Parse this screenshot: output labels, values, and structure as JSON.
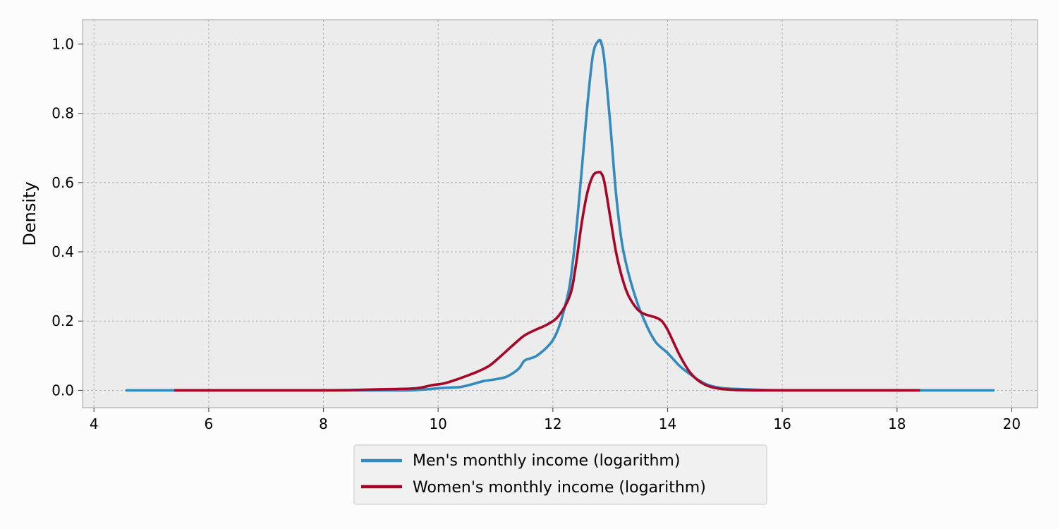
{
  "chart_data": {
    "type": "line",
    "title": "",
    "xlabel": "",
    "ylabel": "Density",
    "xlim": [
      3.8,
      20.45
    ],
    "ylim": [
      -0.05,
      1.07
    ],
    "xticks": [
      4,
      6,
      8,
      10,
      12,
      14,
      16,
      18,
      20
    ],
    "yticks": [
      0.0,
      0.2,
      0.4,
      0.6,
      0.8,
      1.0
    ],
    "grid": true,
    "legend_position": "bottom-center, outside plot",
    "series": [
      {
        "name": "Men's monthly income (logarithm)",
        "color": "#348abd",
        "x": [
          4.55,
          6.0,
          7.0,
          8.0,
          8.5,
          9.0,
          9.5,
          9.8,
          10.0,
          10.2,
          10.4,
          10.6,
          10.8,
          11.0,
          11.2,
          11.4,
          11.5,
          11.6,
          11.7,
          11.8,
          11.9,
          12.0,
          12.1,
          12.2,
          12.3,
          12.4,
          12.5,
          12.6,
          12.7,
          12.8,
          12.85,
          12.9,
          13.0,
          13.1,
          13.2,
          13.3,
          13.4,
          13.5,
          13.6,
          13.7,
          13.8,
          13.9,
          14.0,
          14.1,
          14.2,
          14.3,
          14.4,
          14.5,
          14.6,
          14.7,
          14.8,
          14.9,
          15.0,
          15.2,
          15.5,
          16.0,
          17.0,
          18.0,
          19.0,
          19.7
        ],
        "y": [
          0.0,
          0.0,
          0.0,
          0.0,
          0.0,
          0.0,
          0.0,
          0.003,
          0.006,
          0.008,
          0.01,
          0.018,
          0.027,
          0.032,
          0.04,
          0.062,
          0.085,
          0.092,
          0.098,
          0.11,
          0.125,
          0.145,
          0.18,
          0.235,
          0.31,
          0.45,
          0.63,
          0.82,
          0.97,
          1.01,
          1.0,
          0.95,
          0.77,
          0.57,
          0.43,
          0.35,
          0.29,
          0.24,
          0.2,
          0.165,
          0.138,
          0.122,
          0.108,
          0.09,
          0.072,
          0.058,
          0.046,
          0.034,
          0.024,
          0.016,
          0.011,
          0.008,
          0.006,
          0.004,
          0.002,
          0.0,
          0.0,
          0.0,
          0.0,
          0.0
        ]
      },
      {
        "name": "Women's monthly income (logarithm)",
        "color": "#a60628",
        "x": [
          5.4,
          6.0,
          7.0,
          8.0,
          8.5,
          9.0,
          9.5,
          9.7,
          9.9,
          10.1,
          10.3,
          10.5,
          10.7,
          10.9,
          11.1,
          11.3,
          11.5,
          11.7,
          11.9,
          12.1,
          12.3,
          12.4,
          12.5,
          12.6,
          12.7,
          12.8,
          12.85,
          12.9,
          13.0,
          13.1,
          13.2,
          13.3,
          13.4,
          13.5,
          13.6,
          13.7,
          13.8,
          13.9,
          14.0,
          14.1,
          14.2,
          14.3,
          14.4,
          14.5,
          14.6,
          14.7,
          14.8,
          14.9,
          15.0,
          15.2,
          15.5,
          16.0,
          17.0,
          18.0,
          18.4
        ],
        "y": [
          0.0,
          0.0,
          0.0,
          0.0,
          0.001,
          0.003,
          0.005,
          0.008,
          0.015,
          0.02,
          0.03,
          0.042,
          0.055,
          0.072,
          0.1,
          0.13,
          0.158,
          0.175,
          0.19,
          0.215,
          0.275,
          0.36,
          0.48,
          0.57,
          0.62,
          0.63,
          0.625,
          0.6,
          0.5,
          0.4,
          0.33,
          0.28,
          0.25,
          0.23,
          0.22,
          0.215,
          0.21,
          0.2,
          0.175,
          0.14,
          0.105,
          0.075,
          0.05,
          0.033,
          0.021,
          0.013,
          0.008,
          0.005,
          0.003,
          0.001,
          0.0,
          0.0,
          0.0,
          0.0,
          0.0
        ]
      }
    ]
  }
}
